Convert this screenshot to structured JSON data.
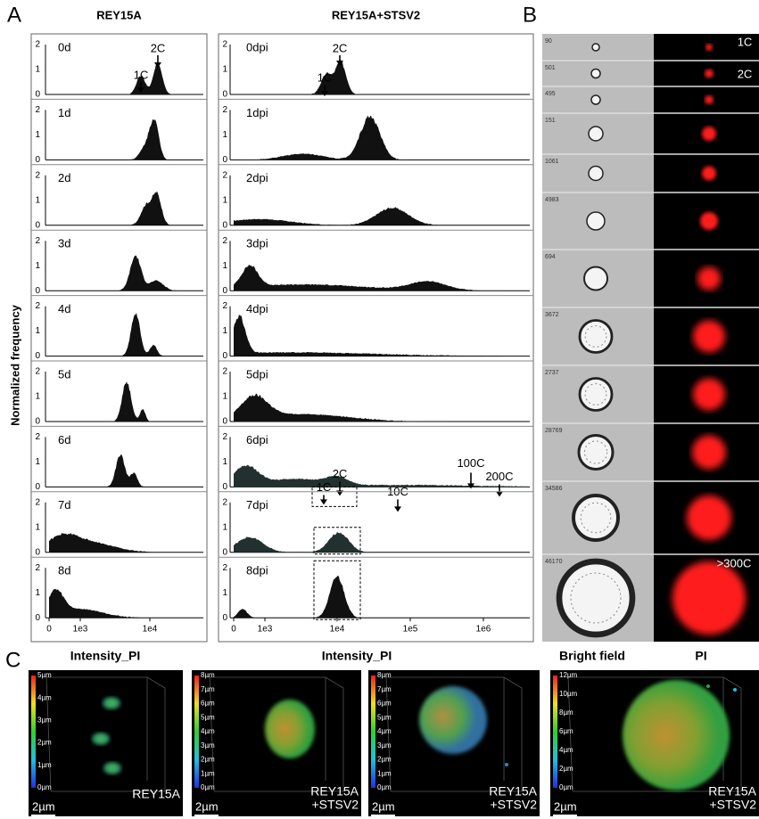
{
  "panel_a": {
    "label": "A",
    "ylabel": "Normalized frequency",
    "yticks": [
      "2",
      "1",
      "0"
    ],
    "left": {
      "title": "REY15A",
      "xticks": [
        "0",
        "1e3",
        "1e4"
      ],
      "rows": [
        {
          "label": "0d",
          "markers": [
            "1C",
            "2C"
          ]
        },
        {
          "label": "1d"
        },
        {
          "label": "2d"
        },
        {
          "label": "3d"
        },
        {
          "label": "4d"
        },
        {
          "label": "5d"
        },
        {
          "label": "6d"
        },
        {
          "label": "7d"
        },
        {
          "label": "8d"
        }
      ]
    },
    "right": {
      "title": "REY15A+STSV2",
      "xticks": [
        "0",
        "1e3",
        "1e4",
        "1e5",
        "1e6"
      ],
      "rows": [
        {
          "label": "0dpi",
          "markers": [
            "1C",
            "2C"
          ]
        },
        {
          "label": "1dpi"
        },
        {
          "label": "2dpi"
        },
        {
          "label": "3dpi"
        },
        {
          "label": "4dpi"
        },
        {
          "label": "5dpi"
        },
        {
          "label": "6dpi",
          "markers": [
            "1C",
            "2C",
            "10C",
            "100C",
            "200C"
          ]
        },
        {
          "label": "7dpi"
        },
        {
          "label": "8dpi"
        }
      ]
    }
  },
  "panel_b": {
    "label": "B",
    "cells": [
      "90",
      "501",
      "495",
      "151",
      "1061",
      "4983",
      "694",
      "3672",
      "2737",
      "28769",
      "34586",
      "46170"
    ],
    "ploidy": [
      "1C",
      "2C",
      ">300C"
    ]
  },
  "panel_c": {
    "label": "C",
    "headings": [
      "Intensity_PI",
      "Intensity_PI",
      "Bright field",
      "PI"
    ],
    "images": [
      {
        "scale": [
          "5µm",
          "4µm",
          "3µm",
          "2µm",
          "1µm",
          "0µm"
        ],
        "caption": [
          "REY15A"
        ],
        "scale_bar": "2µm"
      },
      {
        "scale": [
          "8µm",
          "7µm",
          "6µm",
          "5µm",
          "4µm",
          "3µm",
          "2µm",
          "1µm",
          "0µm"
        ],
        "caption": [
          "REY15A",
          "+STSV2"
        ],
        "scale_bar": "2µm"
      },
      {
        "scale": [
          "8µm",
          "7µm",
          "6µm",
          "5µm",
          "4µm",
          "3µm",
          "2µm",
          "1µm",
          "0µm"
        ],
        "caption": [
          "REY15A",
          "+STSV2"
        ],
        "scale_bar": "2µm"
      },
      {
        "scale": [
          "12µm",
          "10µm",
          "8µm",
          "6µm",
          "4µm",
          "2µm",
          "0µm"
        ],
        "caption": [
          "REY15A",
          "+STSV2"
        ],
        "scale_bar": "2µm"
      }
    ]
  }
}
